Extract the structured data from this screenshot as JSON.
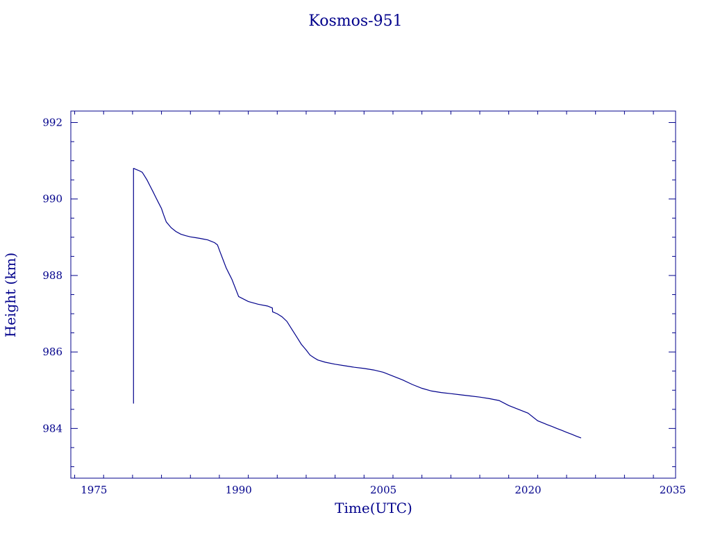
{
  "chart_data": {
    "type": "line",
    "title": "Kosmos-951",
    "xlabel": "Time(UTC)",
    "ylabel": "Height (km)",
    "xlim": [
      1972.6,
      2035.3
    ],
    "ylim": [
      982.7,
      992.3
    ],
    "x_ticks": [
      "1975",
      "1990",
      "2005",
      "2020",
      "2035"
    ],
    "y_ticks": [
      "984",
      "986",
      "988",
      "990",
      "992"
    ],
    "color": "#00008b",
    "grid": false,
    "series": [
      {
        "x": [
          1979.1,
          1979.1,
          1979.15,
          1979.3,
          1979.5,
          1979.7,
          1980.0,
          1980.2,
          1980.5,
          1980.8,
          1981.1,
          1981.4,
          1981.7,
          1982.0,
          1982.2,
          1982.5,
          1983.0,
          1983.5,
          1984.0,
          1984.5,
          1985.0,
          1985.5,
          1986.0,
          1986.4,
          1986.8,
          1987.0,
          1987.2,
          1987.5,
          1987.8,
          1988.1,
          1988.4,
          1988.7,
          1989.0,
          1989.3,
          1990.0,
          1991.0,
          1992.0,
          1993.0,
          1993.5,
          1993.52,
          1994.0,
          1994.5,
          1995.0,
          1995.5,
          1996.0,
          1996.5,
          1997.0,
          1997.4,
          1997.8,
          1998.2,
          1999.0,
          2000.0,
          2001.0,
          2002.0,
          2003.0,
          2004.0,
          2005.0,
          2006.0,
          2007.0,
          2008.0,
          2009.0,
          2010.0,
          2011.0,
          2012.0,
          2013.0,
          2014.0,
          2015.0,
          2016.0,
          2017.0,
          2018.0,
          2019.0,
          2020.0,
          2021.0,
          2021.5,
          2022.0,
          2022.5,
          2023.0,
          2023.5,
          2024.0,
          2024.5,
          2025.0,
          2025.5
        ],
        "y": [
          984.65,
          990.8,
          990.8,
          990.78,
          990.76,
          990.74,
          990.7,
          990.62,
          990.5,
          990.35,
          990.2,
          990.05,
          989.9,
          989.75,
          989.6,
          989.4,
          989.25,
          989.15,
          989.08,
          989.04,
          989.01,
          988.99,
          988.97,
          988.95,
          988.93,
          988.91,
          988.89,
          988.86,
          988.8,
          988.6,
          988.4,
          988.2,
          988.05,
          987.9,
          987.45,
          987.32,
          987.25,
          987.2,
          987.15,
          987.05,
          987.0,
          986.92,
          986.8,
          986.6,
          986.4,
          986.2,
          986.05,
          985.92,
          985.85,
          985.79,
          985.73,
          985.68,
          985.64,
          985.6,
          985.57,
          985.53,
          985.47,
          985.37,
          985.27,
          985.15,
          985.05,
          984.98,
          984.94,
          984.91,
          984.88,
          984.85,
          984.82,
          984.78,
          984.73,
          984.6,
          984.5,
          984.4,
          984.2,
          984.15,
          984.1,
          984.05,
          984.0,
          983.95,
          983.9,
          983.85,
          983.8,
          983.75
        ]
      }
    ]
  }
}
